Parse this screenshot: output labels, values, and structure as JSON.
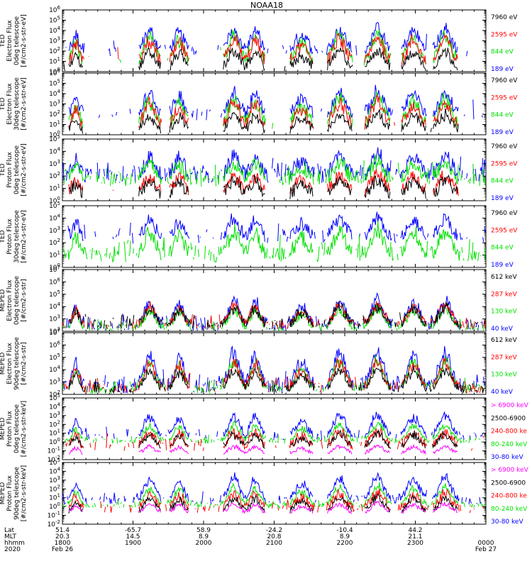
{
  "title": "NOAA18",
  "colors": {
    "black": "#000000",
    "red": "#ff0000",
    "green": "#00e000",
    "blue": "#0000ff",
    "magenta": "#ff00ff"
  },
  "chart_data": [
    {
      "type": "line",
      "ylabel": [
        "TED",
        "Electron Flux",
        "0deg telescope",
        "[#/cm2-s-str-eV]"
      ],
      "ylim_exp": [
        0,
        6
      ],
      "ticks": [
        0,
        1,
        2,
        3,
        4,
        5,
        6
      ],
      "legend": [
        {
          "text": "7960 eV",
          "color": "black"
        },
        {
          "text": "2595 eV",
          "color": "red"
        },
        {
          "text": "844 eV",
          "color": "green"
        },
        {
          "text": "189 eV",
          "color": "blue"
        }
      ],
      "style": "ted_e"
    },
    {
      "type": "line",
      "ylabel": [
        "TED",
        "Electron Flux",
        "30deg telescope",
        "[#/cm2-s-str-eV]"
      ],
      "ylim_exp": [
        0,
        6
      ],
      "ticks": [
        0,
        1,
        2,
        3,
        4,
        5,
        6
      ],
      "legend": [
        {
          "text": "7960 eV",
          "color": "black"
        },
        {
          "text": "2595 eV",
          "color": "red"
        },
        {
          "text": "844 eV",
          "color": "green"
        },
        {
          "text": "189 eV",
          "color": "blue"
        }
      ],
      "style": "ted_e"
    },
    {
      "type": "line",
      "ylabel": [
        "TED",
        "Proton Flux",
        "0deg telescope",
        "[#/cm2-s-str-eV]"
      ],
      "ylim_exp": [
        0,
        5
      ],
      "ticks": [
        0,
        1,
        2,
        3,
        4,
        5
      ],
      "legend": [
        {
          "text": "7960 eV",
          "color": "black"
        },
        {
          "text": "2595 eV",
          "color": "red"
        },
        {
          "text": "844 eV",
          "color": "green"
        },
        {
          "text": "189 eV",
          "color": "blue"
        }
      ],
      "style": "ted_p"
    },
    {
      "type": "line",
      "ylabel": [
        "TED",
        "Proton Flux",
        "30deg telescope",
        "[#/cm2-s-str-eV]"
      ],
      "ylim_exp": [
        0,
        5
      ],
      "ticks": [
        0,
        1,
        2,
        3,
        4,
        5
      ],
      "legend": [
        {
          "text": "7960 eV",
          "color": "black"
        },
        {
          "text": "2595 eV",
          "color": "red"
        },
        {
          "text": "844 eV",
          "color": "green"
        },
        {
          "text": "189 eV",
          "color": "blue"
        }
      ],
      "style": "ted_p30"
    },
    {
      "type": "line",
      "ylabel": [
        "MEPED",
        "Electron Flux",
        "0deg telescope",
        "[#/cm2-s-str]"
      ],
      "ylim_exp": [
        2,
        7
      ],
      "ticks": [
        2,
        3,
        4,
        5,
        6,
        7
      ],
      "legend": [
        {
          "text": "612 keV",
          "color": "black"
        },
        {
          "text": "287 keV",
          "color": "red"
        },
        {
          "text": "130 keV",
          "color": "green"
        },
        {
          "text": "40 keV",
          "color": "blue"
        }
      ],
      "style": "mep_e0"
    },
    {
      "type": "line",
      "ylabel": [
        "MEPED",
        "Electron Flux",
        "90deg telescope",
        "[#/cm2-s-str]"
      ],
      "ylim_exp": [
        2,
        7
      ],
      "ticks": [
        2,
        3,
        4,
        5,
        6,
        7
      ],
      "legend": [
        {
          "text": "612 keV",
          "color": "black"
        },
        {
          "text": "287 keV",
          "color": "red"
        },
        {
          "text": "130 keV",
          "color": "green"
        },
        {
          "text": "40 keV",
          "color": "blue"
        }
      ],
      "style": "mep_e90"
    },
    {
      "type": "line",
      "ylabel": [
        "MEPED",
        "Proton Flux",
        "0deg telescope",
        "[#/cm2-s-str-keV]"
      ],
      "ylim_exp": [
        -2,
        5
      ],
      "ticks": [
        -2,
        -1,
        0,
        1,
        2,
        3,
        4,
        5
      ],
      "legend": [
        {
          "text": "> 6900 keV",
          "color": "magenta"
        },
        {
          "text": "2500-6900",
          "color": "black"
        },
        {
          "text": "240-800 ke",
          "color": "red"
        },
        {
          "text": "80-240 keV",
          "color": "green"
        },
        {
          "text": "30-80 keV",
          "color": "blue"
        }
      ],
      "style": "mep_p0"
    },
    {
      "type": "line",
      "ylabel": [
        "MEPED",
        "Proton Flux",
        "90deg telescope",
        "[#/cm2-s-str-keV]"
      ],
      "ylim_exp": [
        -2,
        5
      ],
      "ticks": [
        -2,
        -1,
        0,
        1,
        2,
        3,
        4,
        5
      ],
      "legend": [
        {
          "text": "> 6900 keV",
          "color": "magenta"
        },
        {
          "text": "2500-6900",
          "color": "black"
        },
        {
          "text": "240-800 ke",
          "color": "red"
        },
        {
          "text": "80-240 keV",
          "color": "green"
        },
        {
          "text": "30-80 keV",
          "color": "blue"
        }
      ],
      "style": "mep_p90"
    }
  ],
  "xaxis": {
    "row_labels": [
      "Lat",
      "MLT",
      "hhmm",
      "2020"
    ],
    "ticks": [
      {
        "lat": "51.4",
        "mlt": "20.3",
        "hhmm": "1800",
        "date": "Feb 26"
      },
      {
        "lat": "-65.7",
        "mlt": "14.5",
        "hhmm": "1900",
        "date": ""
      },
      {
        "lat": "58.9",
        "mlt": "8.9",
        "hhmm": "2000",
        "date": ""
      },
      {
        "lat": "-24.2",
        "mlt": "20.8",
        "hhmm": "2100",
        "date": ""
      },
      {
        "lat": "-10.4",
        "mlt": "8.9",
        "hhmm": "2200",
        "date": ""
      },
      {
        "lat": "44.2",
        "mlt": "21.1",
        "hhmm": "2300",
        "date": ""
      },
      {
        "lat": "",
        "mlt": "",
        "hhmm": "0000",
        "date": "Feb 27"
      }
    ],
    "minor_per_major": 6
  },
  "passes": [
    {
      "t": 0.03,
      "w": 0.012,
      "amp": 0.55
    },
    {
      "t": 0.205,
      "w": 0.018,
      "amp": 0.7
    },
    {
      "t": 0.275,
      "w": 0.016,
      "amp": 0.65
    },
    {
      "t": 0.405,
      "w": 0.018,
      "amp": 0.75
    },
    {
      "t": 0.455,
      "w": 0.016,
      "amp": 0.7
    },
    {
      "t": 0.565,
      "w": 0.02,
      "amp": 0.55
    },
    {
      "t": 0.655,
      "w": 0.02,
      "amp": 0.75
    },
    {
      "t": 0.745,
      "w": 0.02,
      "amp": 0.8
    },
    {
      "t": 0.83,
      "w": 0.02,
      "amp": 0.7
    },
    {
      "t": 0.905,
      "w": 0.02,
      "amp": 0.75
    }
  ]
}
